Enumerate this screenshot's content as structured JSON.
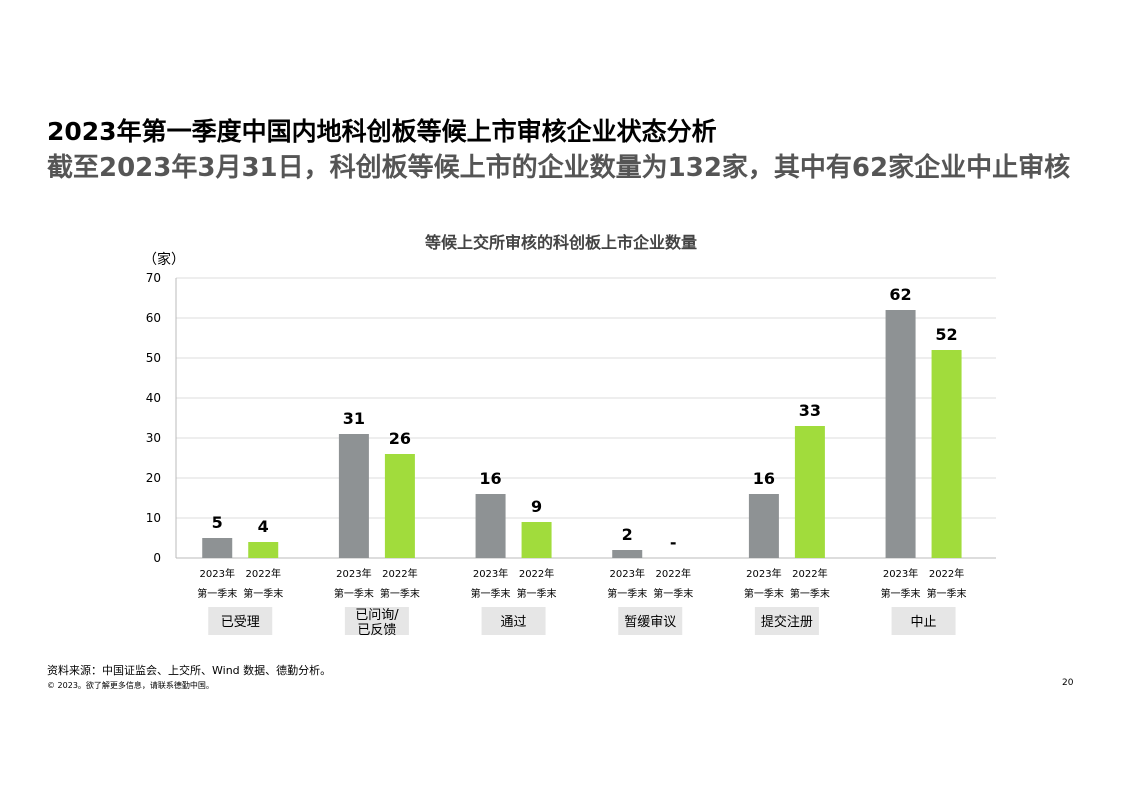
{
  "page": {
    "title": "2023年第一季度中国内地科创板等候上市审核企业状态分析",
    "subtitle": "截至2023年3月31日，科创板等候上市的企业数量为132家，其中有62家企业中止审核",
    "source": "资料来源：中国证监会、上交所、Wind 数据、德勤分析。",
    "copyright": "© 2023。欲了解更多信息，请联系德勤中国。",
    "page_number": "20"
  },
  "chart_data": {
    "type": "bar",
    "title": "等候上交所审核的科创板上市企业数量",
    "ylabel": "（家）",
    "ylim": [
      0,
      70
    ],
    "yticks": [
      0,
      10,
      20,
      30,
      40,
      50,
      60,
      70
    ],
    "grid": true,
    "categories": [
      "已受理",
      "已问询/已反馈",
      "通过",
      "暂缓审议",
      "提交注册",
      "中止"
    ],
    "series": [
      {
        "name": "2023年第一季末",
        "year_label": "2023年",
        "period_label": "第一季末",
        "color": "#8e9294",
        "values": [
          5,
          31,
          16,
          2,
          16,
          62
        ],
        "labels": [
          "5",
          "31",
          "16",
          "2",
          "16",
          "62"
        ]
      },
      {
        "name": "2022年第一季末",
        "year_label": "2022年",
        "period_label": "第一季末",
        "color": "#a1dc3c",
        "values": [
          4,
          26,
          9,
          0,
          33,
          52
        ],
        "labels": [
          "4",
          "26",
          "9",
          "-",
          "33",
          "52"
        ]
      }
    ]
  }
}
